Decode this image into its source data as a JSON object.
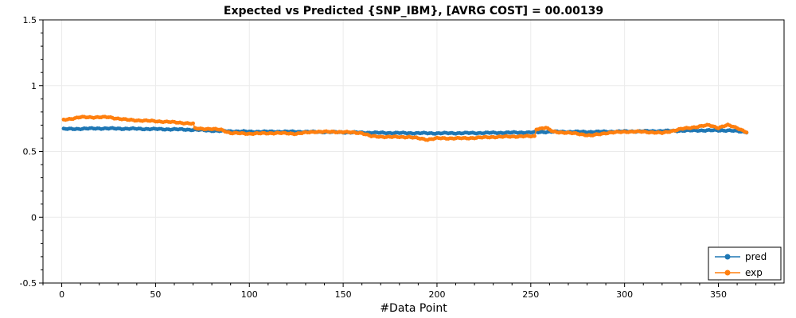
{
  "chart_data": {
    "type": "line",
    "title": "Expected vs Predicted {SNP_IBM}, [AVRG COST] = 00.00139",
    "xlabel": "#Data Point",
    "ylabel": "",
    "xlim": [
      -10,
      385
    ],
    "ylim": [
      -0.5,
      1.5
    ],
    "x_ticks": [
      0,
      50,
      100,
      150,
      200,
      250,
      300,
      350
    ],
    "y_ticks": [
      -0.5,
      0,
      0.5,
      1,
      1.5
    ],
    "x_tick_labels": [
      "0",
      "50",
      "100",
      "150",
      "200",
      "250",
      "300",
      "350"
    ],
    "y_tick_labels": [
      "-0.5",
      "0",
      "0.5",
      "1",
      "1.5"
    ],
    "grid": true,
    "legend_position": "bottom-right",
    "series": [
      {
        "name": "pred",
        "color": "#1f77b4",
        "x_start": 1,
        "x_end": 365,
        "anchors": [
          [
            1,
            0.67
          ],
          [
            20,
            0.675
          ],
          [
            40,
            0.672
          ],
          [
            60,
            0.668
          ],
          [
            70,
            0.665
          ],
          [
            85,
            0.655
          ],
          [
            100,
            0.65
          ],
          [
            120,
            0.65
          ],
          [
            140,
            0.648
          ],
          [
            160,
            0.643
          ],
          [
            180,
            0.64
          ],
          [
            200,
            0.638
          ],
          [
            220,
            0.64
          ],
          [
            240,
            0.643
          ],
          [
            252,
            0.645
          ],
          [
            260,
            0.65
          ],
          [
            280,
            0.648
          ],
          [
            300,
            0.652
          ],
          [
            320,
            0.655
          ],
          [
            340,
            0.66
          ],
          [
            355,
            0.66
          ],
          [
            365,
            0.648
          ]
        ]
      },
      {
        "name": "exp",
        "color": "#ff7f0e",
        "x_start": 1,
        "x_end": 365,
        "anchors": [
          [
            1,
            0.74
          ],
          [
            10,
            0.76
          ],
          [
            25,
            0.76
          ],
          [
            35,
            0.74
          ],
          [
            50,
            0.73
          ],
          [
            62,
            0.72
          ],
          [
            70,
            0.71
          ],
          [
            71,
            0.675
          ],
          [
            80,
            0.67
          ],
          [
            85,
            0.665
          ],
          [
            90,
            0.64
          ],
          [
            100,
            0.635
          ],
          [
            115,
            0.64
          ],
          [
            125,
            0.635
          ],
          [
            135,
            0.65
          ],
          [
            150,
            0.648
          ],
          [
            160,
            0.64
          ],
          [
            165,
            0.615
          ],
          [
            175,
            0.61
          ],
          [
            185,
            0.61
          ],
          [
            195,
            0.59
          ],
          [
            200,
            0.6
          ],
          [
            215,
            0.6
          ],
          [
            230,
            0.61
          ],
          [
            245,
            0.615
          ],
          [
            252,
            0.615
          ],
          [
            253,
            0.67
          ],
          [
            258,
            0.68
          ],
          [
            262,
            0.65
          ],
          [
            275,
            0.635
          ],
          [
            282,
            0.62
          ],
          [
            290,
            0.64
          ],
          [
            300,
            0.65
          ],
          [
            310,
            0.65
          ],
          [
            320,
            0.64
          ],
          [
            330,
            0.67
          ],
          [
            340,
            0.69
          ],
          [
            345,
            0.7
          ],
          [
            350,
            0.68
          ],
          [
            355,
            0.7
          ],
          [
            360,
            0.68
          ],
          [
            365,
            0.645
          ]
        ]
      }
    ]
  }
}
